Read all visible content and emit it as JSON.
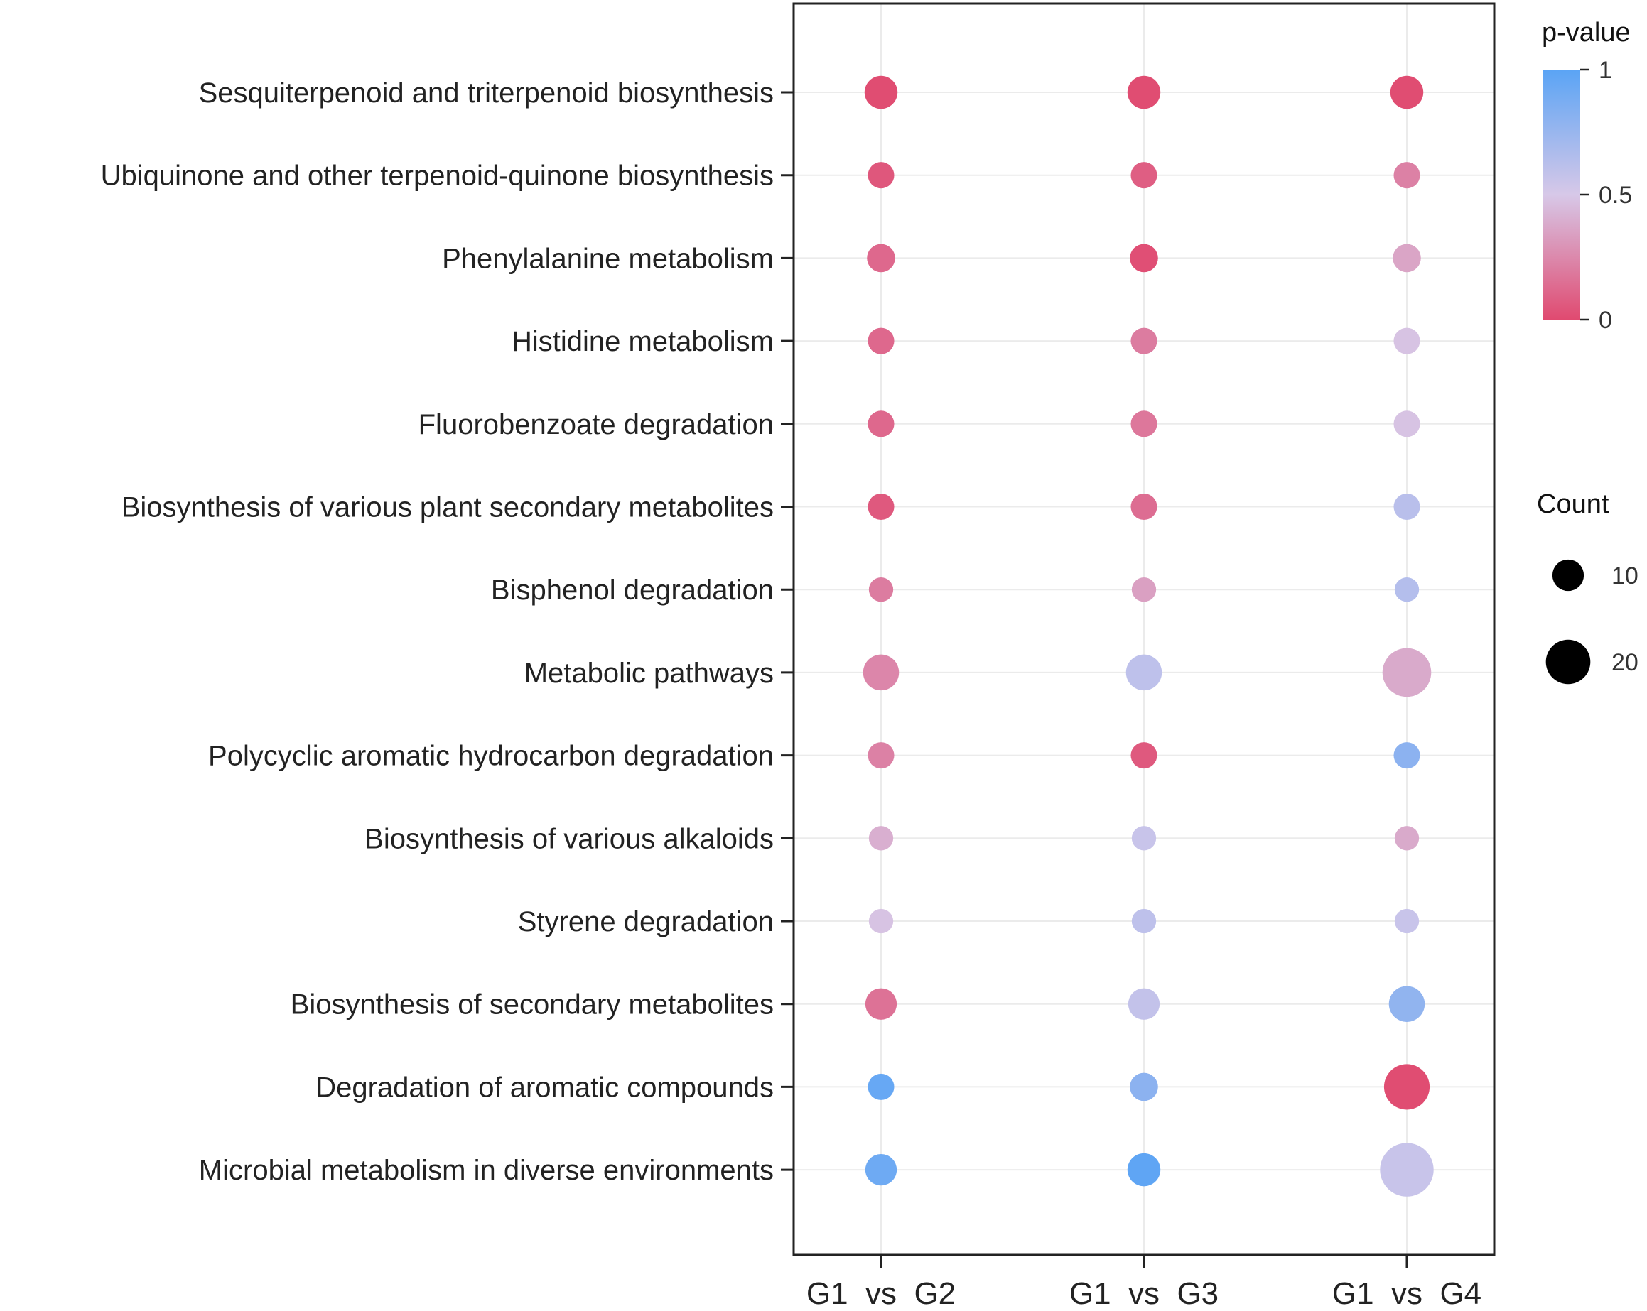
{
  "chart_data": {
    "type": "bubble",
    "title": "",
    "xlabel": "",
    "ylabel": "",
    "categories": [
      "G1  vs  G2",
      "G1  vs  G3",
      "G1  vs  G4"
    ],
    "pathways": [
      "Sesquiterpenoid and triterpenoid biosynthesis",
      "Ubiquinone and other terpenoid-quinone biosynthesis",
      "Phenylalanine metabolism",
      "Histidine metabolism",
      "Fluorobenzoate degradation",
      "Biosynthesis of various plant secondary metabolites",
      "Bisphenol degradation",
      "Metabolic pathways",
      "Polycyclic aromatic hydrocarbon degradation",
      "Biosynthesis of various alkaloids",
      "Styrene degradation",
      "Biosynthesis of secondary metabolites",
      "Degradation of aromatic compounds",
      "Microbial metabolism in diverse environments"
    ],
    "points": [
      {
        "pathway": 0,
        "group": 0,
        "count": 11,
        "pvalue": 0.01
      },
      {
        "pathway": 0,
        "group": 1,
        "count": 11,
        "pvalue": 0.01
      },
      {
        "pathway": 0,
        "group": 2,
        "count": 11,
        "pvalue": 0.01
      },
      {
        "pathway": 1,
        "group": 0,
        "count": 7,
        "pvalue": 0.05
      },
      {
        "pathway": 1,
        "group": 1,
        "count": 7,
        "pvalue": 0.08
      },
      {
        "pathway": 1,
        "group": 2,
        "count": 7,
        "pvalue": 0.22
      },
      {
        "pathway": 2,
        "group": 0,
        "count": 8,
        "pvalue": 0.12
      },
      {
        "pathway": 2,
        "group": 1,
        "count": 8,
        "pvalue": 0.02
      },
      {
        "pathway": 2,
        "group": 2,
        "count": 8,
        "pvalue": 0.36
      },
      {
        "pathway": 3,
        "group": 0,
        "count": 7,
        "pvalue": 0.12
      },
      {
        "pathway": 3,
        "group": 1,
        "count": 7,
        "pvalue": 0.2
      },
      {
        "pathway": 3,
        "group": 2,
        "count": 7,
        "pvalue": 0.48
      },
      {
        "pathway": 4,
        "group": 0,
        "count": 7,
        "pvalue": 0.12
      },
      {
        "pathway": 4,
        "group": 1,
        "count": 7,
        "pvalue": 0.18
      },
      {
        "pathway": 4,
        "group": 2,
        "count": 7,
        "pvalue": 0.48
      },
      {
        "pathway": 5,
        "group": 0,
        "count": 7,
        "pvalue": 0.06
      },
      {
        "pathway": 5,
        "group": 1,
        "count": 7,
        "pvalue": 0.14
      },
      {
        "pathway": 5,
        "group": 2,
        "count": 7,
        "pvalue": 0.62
      },
      {
        "pathway": 6,
        "group": 0,
        "count": 6,
        "pvalue": 0.2
      },
      {
        "pathway": 6,
        "group": 1,
        "count": 6,
        "pvalue": 0.34
      },
      {
        "pathway": 6,
        "group": 2,
        "count": 6,
        "pvalue": 0.64
      },
      {
        "pathway": 7,
        "group": 0,
        "count": 13,
        "pvalue": 0.24
      },
      {
        "pathway": 7,
        "group": 1,
        "count": 13,
        "pvalue": 0.6
      },
      {
        "pathway": 7,
        "group": 2,
        "count": 24,
        "pvalue": 0.38
      },
      {
        "pathway": 8,
        "group": 0,
        "count": 7,
        "pvalue": 0.22
      },
      {
        "pathway": 8,
        "group": 1,
        "count": 7,
        "pvalue": 0.06
      },
      {
        "pathway": 8,
        "group": 2,
        "count": 7,
        "pvalue": 0.8
      },
      {
        "pathway": 9,
        "group": 0,
        "count": 6,
        "pvalue": 0.4
      },
      {
        "pathway": 9,
        "group": 1,
        "count": 6,
        "pvalue": 0.56
      },
      {
        "pathway": 9,
        "group": 2,
        "count": 6,
        "pvalue": 0.38
      },
      {
        "pathway": 10,
        "group": 0,
        "count": 6,
        "pvalue": 0.48
      },
      {
        "pathway": 10,
        "group": 1,
        "count": 6,
        "pvalue": 0.6
      },
      {
        "pathway": 10,
        "group": 2,
        "count": 6,
        "pvalue": 0.56
      },
      {
        "pathway": 11,
        "group": 0,
        "count": 10,
        "pvalue": 0.16
      },
      {
        "pathway": 11,
        "group": 1,
        "count": 10,
        "pvalue": 0.58
      },
      {
        "pathway": 11,
        "group": 2,
        "count": 13,
        "pvalue": 0.78
      },
      {
        "pathway": 12,
        "group": 0,
        "count": 7,
        "pvalue": 0.95
      },
      {
        "pathway": 12,
        "group": 1,
        "count": 8,
        "pvalue": 0.8
      },
      {
        "pathway": 12,
        "group": 2,
        "count": 21,
        "pvalue": 0.01
      },
      {
        "pathway": 13,
        "group": 0,
        "count": 10,
        "pvalue": 0.92
      },
      {
        "pathway": 13,
        "group": 1,
        "count": 11,
        "pvalue": 0.98
      },
      {
        "pathway": 13,
        "group": 2,
        "count": 29,
        "pvalue": 0.56
      }
    ],
    "color_legend": {
      "title": "p-value",
      "ticks": [
        "1",
        "0.5",
        "0"
      ],
      "range": [
        0,
        1
      ],
      "low_color": "#e04a70",
      "mid_color": "#d7c8e8",
      "high_color": "#5aa4f5"
    },
    "size_legend": {
      "title": "Count",
      "entries": [
        {
          "value": 10,
          "label": "10"
        },
        {
          "value": 20,
          "label": "20"
        }
      ]
    },
    "grid": true
  }
}
